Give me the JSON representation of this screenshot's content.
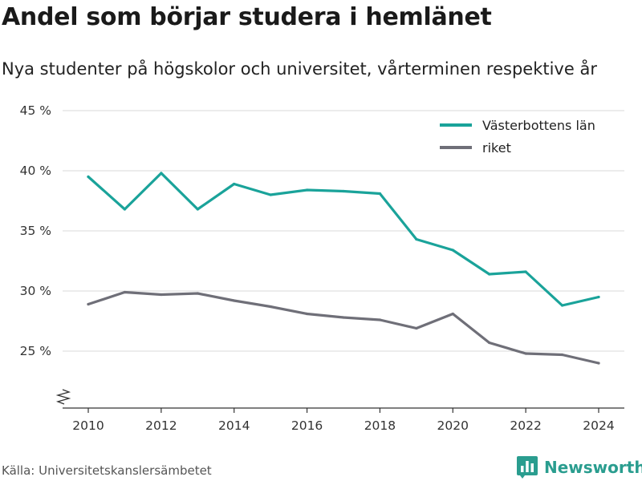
{
  "title": "Andel som börjar studera i hemlänet",
  "subtitle": "Nya studenter på högskolor och universitet, vårterminen respektive år",
  "source": "Källa: Universitetskanslersämbetet",
  "brand": {
    "name": "Newsworthy",
    "icon": "bar-chart-logo-icon",
    "color": "#2a9d8f"
  },
  "chart_data": {
    "type": "line",
    "x": [
      2010,
      2011,
      2012,
      2013,
      2014,
      2015,
      2016,
      2017,
      2018,
      2019,
      2020,
      2021,
      2022,
      2023,
      2024
    ],
    "x_ticks": [
      "2010",
      "2012",
      "2014",
      "2016",
      "2018",
      "2020",
      "2022",
      "2024"
    ],
    "y_ticks": [
      "45 %",
      "40 %",
      "35 %",
      "30 %",
      "25 %"
    ],
    "ylim": [
      21,
      45
    ],
    "y_axis_broken": true,
    "grid": "horizontal",
    "legend_position": "top-right",
    "series": [
      {
        "name": "Västerbottens län",
        "color": "#1aa39a",
        "values": [
          39.5,
          36.8,
          39.8,
          36.8,
          38.9,
          38.0,
          38.4,
          38.3,
          38.1,
          34.3,
          33.4,
          31.4,
          31.6,
          28.8,
          29.5
        ]
      },
      {
        "name": "riket",
        "color": "#6f6f78",
        "values": [
          28.9,
          29.9,
          29.7,
          29.8,
          29.2,
          28.7,
          28.1,
          27.8,
          27.6,
          26.9,
          28.1,
          25.7,
          24.8,
          24.7,
          24.0
        ]
      }
    ]
  }
}
